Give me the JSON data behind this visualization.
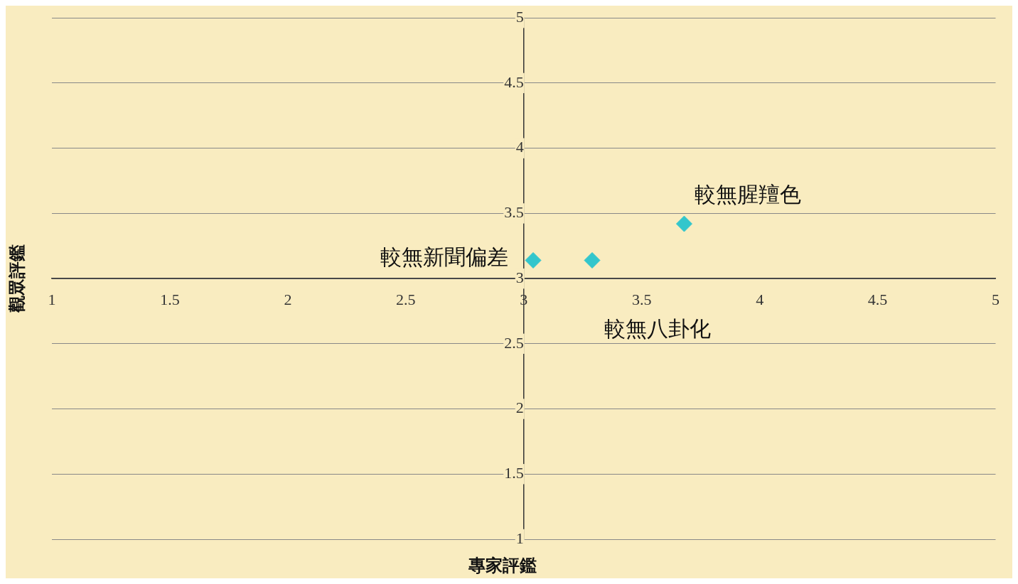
{
  "chart_data": {
    "type": "scatter",
    "xlabel": "專家評鑑",
    "ylabel": "觀眾評鑑",
    "x": [
      3.04,
      3.29,
      3.68
    ],
    "values": [
      3.14,
      3.14,
      3.42
    ],
    "color": "#33c6cc",
    "marker": "diamond",
    "xlim": [
      1,
      5
    ],
    "ylim": [
      1,
      5
    ],
    "xticks": [
      1,
      1.5,
      2,
      2.5,
      3,
      3.5,
      4,
      4.5,
      5
    ],
    "yticks": [
      1,
      1.5,
      2,
      2.5,
      3,
      3.5,
      4,
      4.5,
      5
    ],
    "grid": "y",
    "legend": false,
    "annotations": [
      {
        "text": "較無新聞偏差",
        "x": 3.04,
        "y": 3.14
      },
      {
        "text": "較無八卦化",
        "x": 3.29,
        "y": 3.14
      },
      {
        "text": "較無腥羶色",
        "x": 3.68,
        "y": 3.42
      }
    ]
  }
}
